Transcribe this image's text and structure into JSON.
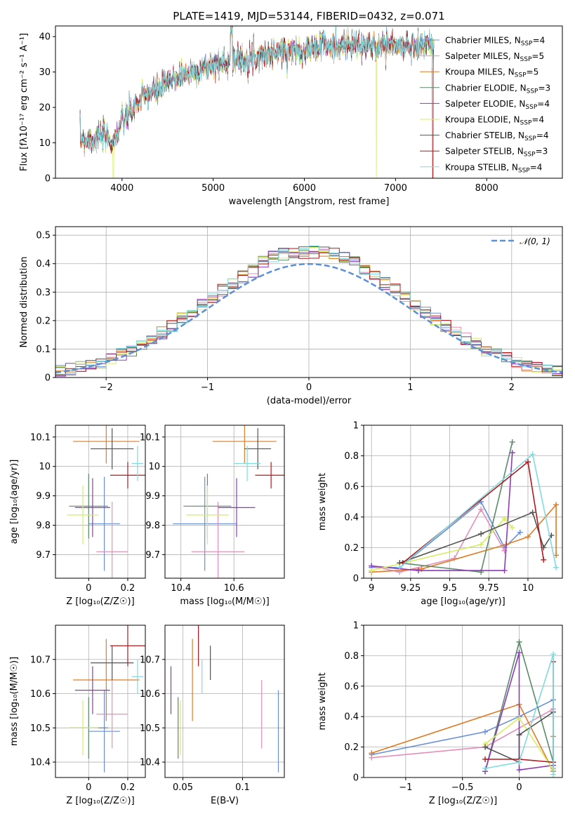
{
  "colors": {
    "Chabrier MILES": "#6a8fd8",
    "Salpeter MILES": "#e48fb9",
    "Kroupa MILES": "#e07b22",
    "Chabrier ELODIE": "#5a8a6a",
    "Salpeter ELODIE": "#8e3bb8",
    "Kroupa ELODIE": "#d4ee5e",
    "Chabrier STELIB": "#545454",
    "Salpeter STELIB": "#b3191e",
    "Kroupa STELIB": "#7fdbe0",
    "normal": "#5b8fd6"
  },
  "chart_data": [
    {
      "id": "spectrum",
      "type": "line",
      "title": "PLATE=1419, MJD=53144, FIBERID=0432, z=0.071",
      "xlabel": "wavelength [Angstrom, rest frame]",
      "ylabel": "Flux [fλ10⁻¹⁷ erg cm⁻² s⁻¹ A⁻¹]",
      "xlim": [
        3270,
        8830
      ],
      "ylim": [
        0,
        43
      ],
      "xticks": [
        4000,
        5000,
        6000,
        7000,
        8000
      ],
      "yticks": [
        0,
        10,
        20,
        30,
        40
      ],
      "grid": false,
      "legend_position": "right",
      "data_range": [
        3540,
        7420
      ],
      "anchors": {
        "x": [
          3540,
          3600,
          3700,
          3800,
          3900,
          3950,
          4000,
          4100,
          4200,
          4300,
          4400,
          4500,
          4600,
          4700,
          4800,
          4900,
          5000,
          5100,
          5200,
          5300,
          5400,
          5500,
          5600,
          5700,
          5800,
          5900,
          6000,
          6100,
          6200,
          6300,
          6400,
          6500,
          6600,
          6700,
          6800,
          6900,
          7000,
          7100,
          7200,
          7300,
          7400
        ],
        "y": [
          12,
          11,
          11,
          12,
          10,
          13,
          16,
          19,
          22,
          24,
          25,
          27,
          28.5,
          29.5,
          30.5,
          31,
          32,
          32.5,
          33,
          33.5,
          34,
          34.5,
          35,
          35.5,
          36,
          36,
          36.5,
          36.5,
          37,
          37,
          37.5,
          37.5,
          37.5,
          37,
          37.5,
          38,
          37.5,
          37,
          37.5,
          38,
          37.5
        ]
      },
      "series": [
        {
          "name": "Chabrier MILES",
          "nssp": "4"
        },
        {
          "name": "Salpeter MILES",
          "nssp": "5"
        },
        {
          "name": "Kroupa MILES",
          "nssp": "5"
        },
        {
          "name": "Chabrier ELODIE",
          "nssp": "3"
        },
        {
          "name": "Salpeter ELODIE",
          "nssp": "4"
        },
        {
          "name": "Kroupa ELODIE",
          "nssp": "4"
        },
        {
          "name": "Chabrier STELIB",
          "nssp": "4"
        },
        {
          "name": "Salpeter STELIB",
          "nssp": "3"
        },
        {
          "name": "Kroupa STELIB",
          "nssp": "4"
        }
      ],
      "drops": [
        {
          "series": "Kroupa ELODIE",
          "x": 3905
        },
        {
          "series": "Kroupa ELODIE",
          "x": 6790
        },
        {
          "series": "Salpeter STELIB",
          "x": 7410
        }
      ]
    },
    {
      "id": "residuals",
      "type": "histogram",
      "xlabel": "(data-model)/error",
      "ylabel": "Normed distribution",
      "xlim": [
        -2.5,
        2.5
      ],
      "ylim": [
        0,
        0.53
      ],
      "xticks": [
        -2,
        -1,
        0,
        1,
        2
      ],
      "yticks": [
        0.0,
        0.1,
        0.2,
        0.3,
        0.4,
        0.5
      ],
      "grid": true,
      "legend": "𝒩(0, 1)",
      "legend_position": "top-right",
      "reference_curve": "normal(0,1)",
      "bin_width": 0.1
    },
    {
      "id": "age_vs_Z",
      "type": "errorbar",
      "xlabel": "Z [log₁₀(Z/Z☉)]",
      "ylabel": "age  [log₁₀(age/yr)]",
      "xlim": [
        -0.17,
        0.29
      ],
      "ylim": [
        9.62,
        10.14
      ],
      "xticks": [
        0.0,
        0.2
      ],
      "yticks": [
        9.7,
        9.8,
        9.9,
        10.0,
        10.1
      ],
      "grid": true,
      "points": [
        {
          "series": "Chabrier MILES",
          "x": 0.08,
          "xerr": 0.08,
          "y": 9.805,
          "yerr": 0.16
        },
        {
          "series": "Salpeter MILES",
          "x": 0.12,
          "xerr": 0.08,
          "y": 9.71,
          "yerr": 0.17
        },
        {
          "series": "Kroupa MILES",
          "x": 0.09,
          "xerr": 0.17,
          "y": 10.085,
          "yerr": 0.075
        },
        {
          "series": "Chabrier ELODIE",
          "x": 0.0,
          "xerr": 0.1,
          "y": 9.865,
          "yerr": 0.11
        },
        {
          "series": "Salpeter ELODIE",
          "x": 0.02,
          "xerr": 0.09,
          "y": 9.86,
          "yerr": 0.1
        },
        {
          "series": "Kroupa ELODIE",
          "x": -0.03,
          "xerr": 0.08,
          "y": 9.835,
          "yerr": 0.1
        },
        {
          "series": "Chabrier STELIB",
          "x": 0.12,
          "xerr": 0.11,
          "y": 10.06,
          "yerr": 0.07
        },
        {
          "series": "Salpeter STELIB",
          "x": 0.2,
          "xerr": 0.09,
          "y": 9.97,
          "yerr": 0.045
        },
        {
          "series": "Kroupa STELIB",
          "x": 0.25,
          "xerr": 0.03,
          "y": 10.01,
          "yerr": 0.06
        }
      ]
    },
    {
      "id": "age_vs_mass",
      "type": "errorbar",
      "xlabel": "mass [log₁₀(M/M☉)]",
      "ylabel": "",
      "xlim": [
        10.34,
        10.79
      ],
      "ylim": [
        9.62,
        10.14
      ],
      "xticks": [
        10.4,
        10.6
      ],
      "yticks": [
        9.7,
        9.8,
        9.9,
        10.0,
        10.1
      ],
      "grid": true,
      "points": [
        {
          "series": "Chabrier MILES",
          "x": 10.49,
          "xerr": 0.12,
          "y": 9.805,
          "yerr": 0.16
        },
        {
          "series": "Salpeter MILES",
          "x": 10.54,
          "xerr": 0.1,
          "y": 9.71,
          "yerr": 0.17
        },
        {
          "series": "Kroupa MILES",
          "x": 10.64,
          "xerr": 0.12,
          "y": 10.085,
          "yerr": 0.075
        },
        {
          "series": "Chabrier ELODIE",
          "x": 10.5,
          "xerr": 0.09,
          "y": 9.865,
          "yerr": 0.11
        },
        {
          "series": "Salpeter ELODIE",
          "x": 10.61,
          "xerr": 0.07,
          "y": 9.86,
          "yerr": 0.1
        },
        {
          "series": "Kroupa ELODIE",
          "x": 10.5,
          "xerr": 0.08,
          "y": 9.835,
          "yerr": 0.1
        },
        {
          "series": "Chabrier STELIB",
          "x": 10.69,
          "xerr": 0.05,
          "y": 10.06,
          "yerr": 0.07
        },
        {
          "series": "Salpeter STELIB",
          "x": 10.74,
          "xerr": 0.06,
          "y": 9.97,
          "yerr": 0.045
        },
        {
          "series": "Kroupa STELIB",
          "x": 10.65,
          "xerr": 0.05,
          "y": 10.01,
          "yerr": 0.06
        }
      ]
    },
    {
      "id": "weight_vs_age",
      "type": "line",
      "xlabel": "age  [log₁₀(age/yr)]",
      "ylabel": "mass weight",
      "xlim": [
        8.95,
        10.22
      ],
      "ylim": [
        0,
        1
      ],
      "xticks": [
        9.0,
        9.25,
        9.5,
        9.75,
        10.0
      ],
      "yticks": [
        0.0,
        0.2,
        0.4,
        0.6,
        0.8,
        1.0
      ],
      "grid": true,
      "series": [
        {
          "name": "Chabrier MILES",
          "x": [
            9.0,
            9.18,
            9.7,
            9.85,
            9.95
          ],
          "y": [
            0.07,
            0.07,
            0.5,
            0.2,
            0.3
          ]
        },
        {
          "name": "Salpeter MILES",
          "x": [
            9.0,
            9.18,
            9.53,
            9.7,
            9.85
          ],
          "y": [
            0.08,
            0.04,
            0.13,
            0.45,
            0.18
          ]
        },
        {
          "name": "Kroupa MILES",
          "x": [
            9.0,
            9.32,
            9.86,
            10.0,
            10.18,
            10.18
          ],
          "y": [
            0.04,
            0.06,
            0.22,
            0.27,
            0.48,
            0.15
          ]
        },
        {
          "name": "Chabrier ELODIE",
          "x": [
            9.18,
            9.7,
            9.9
          ],
          "y": [
            0.1,
            0.04,
            0.89
          ]
        },
        {
          "name": "Salpeter ELODIE",
          "x": [
            9.0,
            9.3,
            9.85,
            9.9
          ],
          "y": [
            0.08,
            0.05,
            0.05,
            0.82
          ]
        },
        {
          "name": "Kroupa ELODIE",
          "x": [
            9.0,
            9.7,
            9.85,
            9.9
          ],
          "y": [
            0.05,
            0.22,
            0.39,
            0.33
          ]
        },
        {
          "name": "Chabrier STELIB",
          "x": [
            9.18,
            9.7,
            10.03,
            10.1,
            10.15
          ],
          "y": [
            0.1,
            0.29,
            0.43,
            0.2,
            0.28
          ]
        },
        {
          "name": "Salpeter STELIB",
          "x": [
            9.2,
            10.0,
            10.1
          ],
          "y": [
            0.1,
            0.76,
            0.12
          ]
        },
        {
          "name": "Kroupa STELIB",
          "x": [
            9.18,
            10.03,
            10.18
          ],
          "y": [
            0.07,
            0.81,
            0.07
          ]
        }
      ]
    },
    {
      "id": "mass_vs_Z",
      "type": "errorbar",
      "xlabel": "Z [log₁₀(Z/Z☉)]",
      "ylabel": "mass [log₁₀(M/M☉)]",
      "xlim": [
        -0.17,
        0.29
      ],
      "ylim": [
        10.355,
        10.8
      ],
      "xticks": [
        0.0,
        0.2
      ],
      "yticks": [
        10.4,
        10.5,
        10.6,
        10.7
      ],
      "grid": true,
      "points": [
        {
          "series": "Chabrier MILES",
          "x": 0.08,
          "xerr": 0.08,
          "y": 10.49,
          "yerr": 0.12
        },
        {
          "series": "Salpeter MILES",
          "x": 0.12,
          "xerr": 0.08,
          "y": 10.54,
          "yerr": 0.1
        },
        {
          "series": "Kroupa MILES",
          "x": 0.09,
          "xerr": 0.17,
          "y": 10.64,
          "yerr": 0.12
        },
        {
          "series": "Chabrier ELODIE",
          "x": 0.0,
          "xerr": 0.1,
          "y": 10.5,
          "yerr": 0.09
        },
        {
          "series": "Salpeter ELODIE",
          "x": 0.02,
          "xerr": 0.09,
          "y": 10.61,
          "yerr": 0.07
        },
        {
          "series": "Kroupa ELODIE",
          "x": -0.03,
          "xerr": 0.08,
          "y": 10.5,
          "yerr": 0.08
        },
        {
          "series": "Chabrier STELIB",
          "x": 0.12,
          "xerr": 0.11,
          "y": 10.69,
          "yerr": 0.05
        },
        {
          "series": "Salpeter STELIB",
          "x": 0.2,
          "xerr": 0.09,
          "y": 10.74,
          "yerr": 0.06
        },
        {
          "series": "Kroupa STELIB",
          "x": 0.25,
          "xerr": 0.03,
          "y": 10.65,
          "yerr": 0.05
        }
      ]
    },
    {
      "id": "mass_vs_ebv",
      "type": "errorbar",
      "xlabel": "E(B-V)",
      "ylabel": "",
      "xlim": [
        0.035,
        0.135
      ],
      "ylim": [
        10.355,
        10.8
      ],
      "xticks": [
        0.05,
        0.1
      ],
      "yticks": [
        10.4,
        10.5,
        10.6,
        10.7
      ],
      "grid": true,
      "points": [
        {
          "series": "Chabrier MILES",
          "x": 0.13,
          "y": 10.49,
          "yerr": 0.12
        },
        {
          "series": "Salpeter MILES",
          "x": 0.116,
          "y": 10.54,
          "yerr": 0.1
        },
        {
          "series": "Kroupa MILES",
          "x": 0.058,
          "y": 10.64,
          "yerr": 0.12
        },
        {
          "series": "Chabrier ELODIE",
          "x": 0.046,
          "y": 10.5,
          "yerr": 0.09
        },
        {
          "series": "Salpeter ELODIE",
          "x": 0.04,
          "y": 10.61,
          "yerr": 0.07
        },
        {
          "series": "Kroupa ELODIE",
          "x": 0.048,
          "y": 10.5,
          "yerr": 0.08
        },
        {
          "series": "Chabrier STELIB",
          "x": 0.073,
          "y": 10.69,
          "yerr": 0.05
        },
        {
          "series": "Salpeter STELIB",
          "x": 0.063,
          "y": 10.74,
          "yerr": 0.06
        },
        {
          "series": "Kroupa STELIB",
          "x": 0.066,
          "y": 10.65,
          "yerr": 0.05
        }
      ]
    },
    {
      "id": "weight_vs_Z",
      "type": "line",
      "xlabel": "Z [log₁₀(Z/Z☉)]",
      "ylabel": "mass weight",
      "xlim": [
        -1.37,
        0.38
      ],
      "ylim": [
        0,
        1
      ],
      "xticks": [
        -1.0,
        -0.5,
        0.0
      ],
      "yticks": [
        0.0,
        0.2,
        0.4,
        0.6,
        0.8,
        1.0
      ],
      "grid": true,
      "series": [
        {
          "name": "Chabrier MILES",
          "x": [
            -1.3,
            -0.3,
            0.0,
            0.3
          ],
          "y": [
            0.15,
            0.3,
            0.4,
            0.51
          ]
        },
        {
          "name": "Salpeter MILES",
          "x": [
            -1.3,
            -0.3,
            0.3,
            0.3
          ],
          "y": [
            0.13,
            0.2,
            0.45,
            0.06
          ]
        },
        {
          "name": "Kroupa MILES",
          "x": [
            -1.3,
            0.0,
            0.3,
            0.3
          ],
          "y": [
            0.16,
            0.48,
            0.04,
            0.27
          ]
        },
        {
          "name": "Chabrier ELODIE",
          "x": [
            -0.3,
            0.0,
            0.3
          ],
          "y": [
            0.04,
            0.89,
            0.1
          ]
        },
        {
          "name": "Salpeter ELODIE",
          "x": [
            -0.3,
            0.0,
            0.0,
            0.3
          ],
          "y": [
            0.04,
            0.82,
            0.05,
            0.08
          ]
        },
        {
          "name": "Kroupa ELODIE",
          "x": [
            -0.3,
            0.0,
            0.3
          ],
          "y": [
            0.22,
            0.39,
            0.05
          ]
        },
        {
          "name": "Chabrier STELIB",
          "x": [
            -0.3,
            0.0,
            0.0,
            0.3
          ],
          "y": [
            0.2,
            0.1,
            0.28,
            0.43
          ]
        },
        {
          "name": "Salpeter STELIB",
          "x": [
            -0.3,
            0.0,
            0.3,
            0.3
          ],
          "y": [
            0.12,
            0.12,
            0.1,
            0.76
          ]
        },
        {
          "name": "Kroupa STELIB",
          "x": [
            -0.3,
            0.0,
            0.3,
            0.3
          ],
          "y": [
            0.06,
            0.1,
            0.81,
            0.02
          ]
        }
      ]
    }
  ]
}
